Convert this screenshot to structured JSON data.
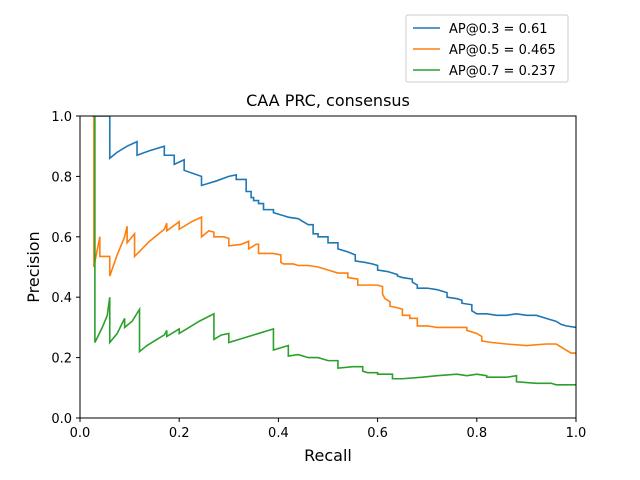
{
  "chart_data": {
    "type": "line",
    "title": "CAA PRC, consensus",
    "xlabel": "Recall",
    "ylabel": "Precision",
    "xlim": [
      0,
      1
    ],
    "ylim": [
      0,
      1
    ],
    "xticks": [
      "0.0",
      "0.2",
      "0.4",
      "0.6",
      "0.8",
      "1.0"
    ],
    "yticks": [
      "0.0",
      "0.2",
      "0.4",
      "0.6",
      "0.8",
      "1.0"
    ],
    "grid": false,
    "legend_position": "top-right",
    "series": [
      {
        "name": "AP@0.3 = 0.61",
        "color": "#1f77b4",
        "points": [
          [
            0.025,
            1.0
          ],
          [
            0.06,
            1.0
          ],
          [
            0.06,
            0.86
          ],
          [
            0.075,
            0.88
          ],
          [
            0.095,
            0.9
          ],
          [
            0.115,
            0.915
          ],
          [
            0.115,
            0.87
          ],
          [
            0.14,
            0.885
          ],
          [
            0.17,
            0.9
          ],
          [
            0.17,
            0.87
          ],
          [
            0.19,
            0.87
          ],
          [
            0.19,
            0.84
          ],
          [
            0.21,
            0.855
          ],
          [
            0.21,
            0.82
          ],
          [
            0.245,
            0.8
          ],
          [
            0.245,
            0.77
          ],
          [
            0.275,
            0.785
          ],
          [
            0.3,
            0.8
          ],
          [
            0.315,
            0.805
          ],
          [
            0.315,
            0.79
          ],
          [
            0.335,
            0.79
          ],
          [
            0.335,
            0.75
          ],
          [
            0.345,
            0.75
          ],
          [
            0.345,
            0.73
          ],
          [
            0.35,
            0.73
          ],
          [
            0.35,
            0.72
          ],
          [
            0.36,
            0.72
          ],
          [
            0.36,
            0.71
          ],
          [
            0.37,
            0.71
          ],
          [
            0.37,
            0.69
          ],
          [
            0.39,
            0.69
          ],
          [
            0.39,
            0.68
          ],
          [
            0.41,
            0.67
          ],
          [
            0.42,
            0.665
          ],
          [
            0.44,
            0.66
          ],
          [
            0.45,
            0.65
          ],
          [
            0.46,
            0.64
          ],
          [
            0.47,
            0.64
          ],
          [
            0.47,
            0.61
          ],
          [
            0.48,
            0.61
          ],
          [
            0.48,
            0.6
          ],
          [
            0.5,
            0.6
          ],
          [
            0.5,
            0.58
          ],
          [
            0.52,
            0.58
          ],
          [
            0.52,
            0.56
          ],
          [
            0.54,
            0.55
          ],
          [
            0.555,
            0.54
          ],
          [
            0.555,
            0.52
          ],
          [
            0.575,
            0.515
          ],
          [
            0.59,
            0.51
          ],
          [
            0.6,
            0.505
          ],
          [
            0.6,
            0.49
          ],
          [
            0.62,
            0.485
          ],
          [
            0.63,
            0.48
          ],
          [
            0.64,
            0.475
          ],
          [
            0.64,
            0.47
          ],
          [
            0.65,
            0.465
          ],
          [
            0.67,
            0.46
          ],
          [
            0.67,
            0.45
          ],
          [
            0.68,
            0.44
          ],
          [
            0.68,
            0.43
          ],
          [
            0.7,
            0.43
          ],
          [
            0.72,
            0.425
          ],
          [
            0.73,
            0.42
          ],
          [
            0.74,
            0.415
          ],
          [
            0.74,
            0.4
          ],
          [
            0.76,
            0.395
          ],
          [
            0.77,
            0.39
          ],
          [
            0.77,
            0.38
          ],
          [
            0.79,
            0.375
          ],
          [
            0.79,
            0.355
          ],
          [
            0.8,
            0.345
          ],
          [
            0.82,
            0.345
          ],
          [
            0.84,
            0.34
          ],
          [
            0.86,
            0.34
          ],
          [
            0.88,
            0.345
          ],
          [
            0.9,
            0.34
          ],
          [
            0.92,
            0.34
          ],
          [
            0.94,
            0.33
          ],
          [
            0.96,
            0.32
          ],
          [
            0.97,
            0.31
          ],
          [
            0.98,
            0.305
          ],
          [
            1.0,
            0.3
          ]
        ]
      },
      {
        "name": "AP@0.5 = 0.465",
        "color": "#ff7f0e",
        "points": [
          [
            0.025,
            1.0
          ],
          [
            0.028,
            1.0
          ],
          [
            0.028,
            0.5
          ],
          [
            0.04,
            0.6
          ],
          [
            0.04,
            0.535
          ],
          [
            0.045,
            0.535
          ],
          [
            0.06,
            0.535
          ],
          [
            0.06,
            0.47
          ],
          [
            0.075,
            0.54
          ],
          [
            0.09,
            0.6
          ],
          [
            0.095,
            0.635
          ],
          [
            0.095,
            0.58
          ],
          [
            0.11,
            0.61
          ],
          [
            0.11,
            0.535
          ],
          [
            0.14,
            0.585
          ],
          [
            0.17,
            0.625
          ],
          [
            0.175,
            0.645
          ],
          [
            0.175,
            0.62
          ],
          [
            0.2,
            0.65
          ],
          [
            0.2,
            0.625
          ],
          [
            0.225,
            0.65
          ],
          [
            0.245,
            0.665
          ],
          [
            0.245,
            0.6
          ],
          [
            0.26,
            0.62
          ],
          [
            0.27,
            0.615
          ],
          [
            0.27,
            0.6
          ],
          [
            0.29,
            0.6
          ],
          [
            0.3,
            0.595
          ],
          [
            0.3,
            0.57
          ],
          [
            0.325,
            0.575
          ],
          [
            0.34,
            0.585
          ],
          [
            0.34,
            0.56
          ],
          [
            0.355,
            0.575
          ],
          [
            0.36,
            0.575
          ],
          [
            0.36,
            0.545
          ],
          [
            0.39,
            0.545
          ],
          [
            0.405,
            0.54
          ],
          [
            0.405,
            0.515
          ],
          [
            0.41,
            0.51
          ],
          [
            0.43,
            0.51
          ],
          [
            0.44,
            0.505
          ],
          [
            0.46,
            0.505
          ],
          [
            0.48,
            0.5
          ],
          [
            0.5,
            0.49
          ],
          [
            0.52,
            0.48
          ],
          [
            0.54,
            0.48
          ],
          [
            0.54,
            0.465
          ],
          [
            0.56,
            0.46
          ],
          [
            0.56,
            0.44
          ],
          [
            0.6,
            0.44
          ],
          [
            0.61,
            0.435
          ],
          [
            0.61,
            0.41
          ],
          [
            0.615,
            0.395
          ],
          [
            0.625,
            0.385
          ],
          [
            0.625,
            0.37
          ],
          [
            0.64,
            0.365
          ],
          [
            0.65,
            0.36
          ],
          [
            0.65,
            0.34
          ],
          [
            0.665,
            0.34
          ],
          [
            0.665,
            0.33
          ],
          [
            0.68,
            0.33
          ],
          [
            0.68,
            0.305
          ],
          [
            0.7,
            0.305
          ],
          [
            0.72,
            0.3
          ],
          [
            0.74,
            0.3
          ],
          [
            0.76,
            0.3
          ],
          [
            0.78,
            0.3
          ],
          [
            0.78,
            0.29
          ],
          [
            0.8,
            0.28
          ],
          [
            0.81,
            0.27
          ],
          [
            0.81,
            0.255
          ],
          [
            0.83,
            0.25
          ],
          [
            0.86,
            0.245
          ],
          [
            0.9,
            0.24
          ],
          [
            0.94,
            0.245
          ],
          [
            0.96,
            0.245
          ],
          [
            0.97,
            0.235
          ],
          [
            0.99,
            0.215
          ],
          [
            1.0,
            0.215
          ]
        ]
      },
      {
        "name": "AP@0.7 = 0.237",
        "color": "#2ca02c",
        "points": [
          [
            0.025,
            1.0
          ],
          [
            0.03,
            1.0
          ],
          [
            0.03,
            0.25
          ],
          [
            0.045,
            0.3
          ],
          [
            0.055,
            0.34
          ],
          [
            0.06,
            0.4
          ],
          [
            0.06,
            0.25
          ],
          [
            0.075,
            0.28
          ],
          [
            0.09,
            0.33
          ],
          [
            0.09,
            0.3
          ],
          [
            0.105,
            0.32
          ],
          [
            0.12,
            0.36
          ],
          [
            0.12,
            0.22
          ],
          [
            0.135,
            0.24
          ],
          [
            0.15,
            0.255
          ],
          [
            0.17,
            0.275
          ],
          [
            0.175,
            0.29
          ],
          [
            0.175,
            0.27
          ],
          [
            0.19,
            0.285
          ],
          [
            0.2,
            0.295
          ],
          [
            0.2,
            0.28
          ],
          [
            0.22,
            0.3
          ],
          [
            0.24,
            0.32
          ],
          [
            0.27,
            0.345
          ],
          [
            0.27,
            0.26
          ],
          [
            0.285,
            0.275
          ],
          [
            0.3,
            0.28
          ],
          [
            0.3,
            0.25
          ],
          [
            0.32,
            0.26
          ],
          [
            0.34,
            0.27
          ],
          [
            0.36,
            0.28
          ],
          [
            0.39,
            0.295
          ],
          [
            0.39,
            0.225
          ],
          [
            0.41,
            0.235
          ],
          [
            0.42,
            0.24
          ],
          [
            0.42,
            0.205
          ],
          [
            0.44,
            0.21
          ],
          [
            0.46,
            0.2
          ],
          [
            0.48,
            0.2
          ],
          [
            0.5,
            0.19
          ],
          [
            0.52,
            0.19
          ],
          [
            0.52,
            0.165
          ],
          [
            0.55,
            0.17
          ],
          [
            0.57,
            0.17
          ],
          [
            0.57,
            0.155
          ],
          [
            0.58,
            0.15
          ],
          [
            0.6,
            0.15
          ],
          [
            0.6,
            0.145
          ],
          [
            0.63,
            0.145
          ],
          [
            0.63,
            0.13
          ],
          [
            0.65,
            0.13
          ],
          [
            0.69,
            0.135
          ],
          [
            0.72,
            0.14
          ],
          [
            0.76,
            0.145
          ],
          [
            0.78,
            0.14
          ],
          [
            0.8,
            0.145
          ],
          [
            0.82,
            0.14
          ],
          [
            0.82,
            0.135
          ],
          [
            0.86,
            0.135
          ],
          [
            0.88,
            0.14
          ],
          [
            0.88,
            0.12
          ],
          [
            0.92,
            0.115
          ],
          [
            0.95,
            0.115
          ],
          [
            0.96,
            0.11
          ],
          [
            1.0,
            0.11
          ]
        ]
      }
    ]
  }
}
